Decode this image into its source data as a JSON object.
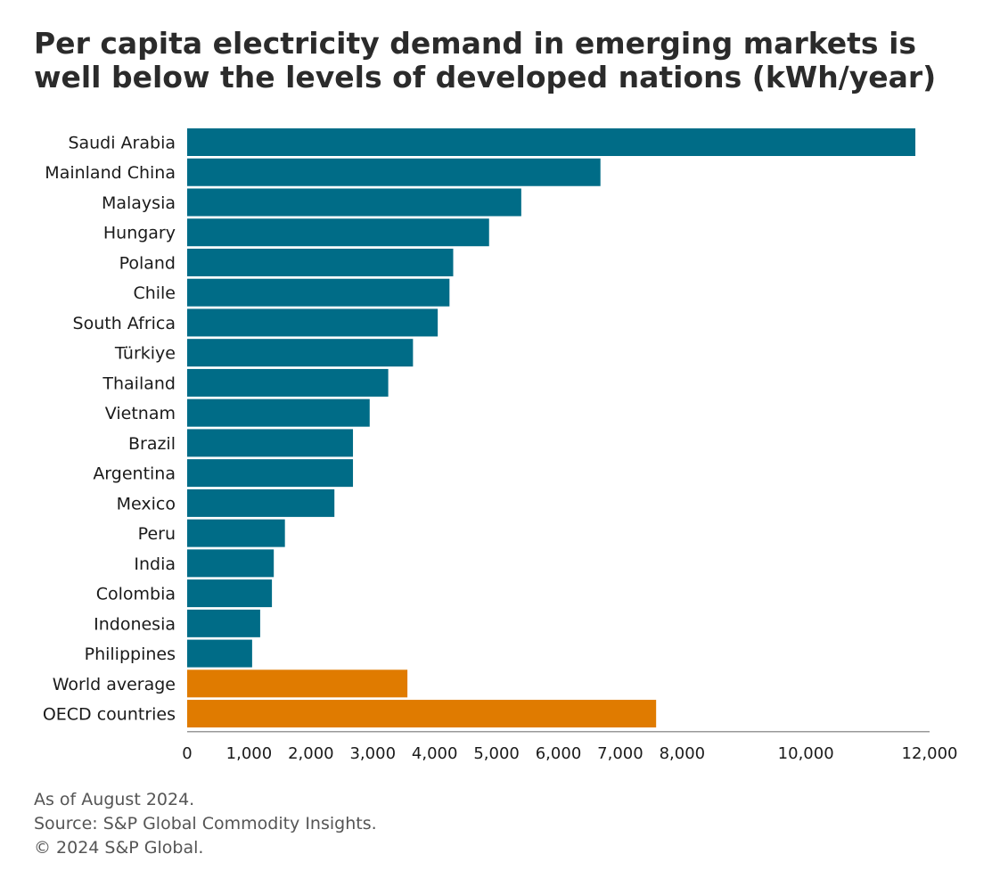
{
  "title": "Per capita electricity demand in emerging markets is well below the levels of developed nations (kWh/year)",
  "colors": {
    "emerging": "#006c87",
    "reference": "#e07b00",
    "axis": "#999999"
  },
  "chart_data": {
    "type": "bar",
    "orientation": "horizontal",
    "title": "Per capita electricity demand in emerging markets is well below the levels of developed nations (kWh/year)",
    "categories": [
      "Saudi Arabia",
      "Mainland China",
      "Malaysia",
      "Hungary",
      "Poland",
      "Chile",
      "South Africa",
      "Türkiye",
      "Thailand",
      "Vietnam",
      "Brazil",
      "Argentina",
      "Mexico",
      "Peru",
      "India",
      "Colombia",
      "Indonesia",
      "Philippines",
      "World average",
      "OECD countries"
    ],
    "values": [
      11770,
      6680,
      5400,
      4880,
      4300,
      4240,
      4050,
      3650,
      3250,
      2950,
      2680,
      2680,
      2380,
      1580,
      1400,
      1370,
      1180,
      1050,
      3560,
      7580
    ],
    "groups": [
      "emerging",
      "emerging",
      "emerging",
      "emerging",
      "emerging",
      "emerging",
      "emerging",
      "emerging",
      "emerging",
      "emerging",
      "emerging",
      "emerging",
      "emerging",
      "emerging",
      "emerging",
      "emerging",
      "emerging",
      "emerging",
      "reference",
      "reference"
    ],
    "x_ticks": [
      {
        "value": 0,
        "label": "0"
      },
      {
        "value": 1000,
        "label": "1,000"
      },
      {
        "value": 2000,
        "label": "2,000"
      },
      {
        "value": 3000,
        "label": "3,000"
      },
      {
        "value": 4000,
        "label": "4,000"
      },
      {
        "value": 5000,
        "label": "5,000"
      },
      {
        "value": 6000,
        "label": "6,000"
      },
      {
        "value": 7000,
        "label": "7,000"
      },
      {
        "value": 8000,
        "label": "8,000"
      },
      {
        "value": 10000,
        "label": "10,000"
      },
      {
        "value": 12000,
        "label": "12,000"
      }
    ],
    "xlim": [
      0,
      12000
    ],
    "xlabel": "",
    "ylabel": "",
    "grid": false,
    "legend": "none"
  },
  "footer": {
    "note": "As of August 2024.",
    "source": "Source: S&P Global Commodity Insights.",
    "copyright": "© 2024 S&P Global."
  }
}
